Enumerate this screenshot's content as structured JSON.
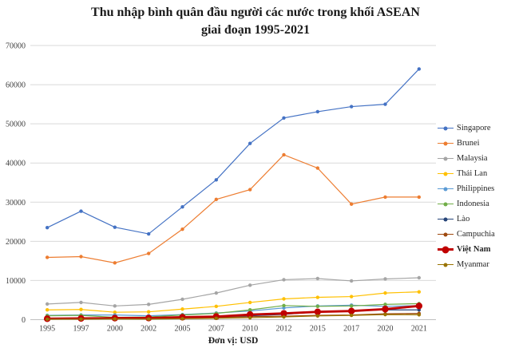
{
  "header": {
    "line1": "Thu nhập bình quân đầu người các nước trong khối ASEAN",
    "line2": "giai đoạn 1995-2021"
  },
  "chart_data": {
    "type": "line",
    "title": "Thu nhập bình quân đầu người các nước trong khối ASEAN giai đoạn 1995-2021",
    "xlabel": "Đơn vị: USD",
    "ylabel": "",
    "ylim": [
      0,
      70000
    ],
    "y_ticks": [
      0,
      10000,
      20000,
      30000,
      40000,
      50000,
      60000,
      70000
    ],
    "grid": "horizontal",
    "legend_position": "right",
    "categories": [
      "1995",
      "1997",
      "2000",
      "2002",
      "2005",
      "2007",
      "2010",
      "2012",
      "2015",
      "2017",
      "2020",
      "2021"
    ],
    "series": [
      {
        "name": "Singapore",
        "color": "#4472C4",
        "bold": false,
        "values": [
          23500,
          27700,
          23600,
          21900,
          28800,
          35700,
          45000,
          51500,
          53100,
          54400,
          55000,
          64000
        ]
      },
      {
        "name": "Brunei",
        "color": "#ED7D31",
        "bold": false,
        "values": [
          15900,
          16100,
          14500,
          16900,
          23100,
          30700,
          33200,
          42100,
          38700,
          29500,
          31300,
          31300
        ]
      },
      {
        "name": "Malaysia",
        "color": "#A5A5A5",
        "bold": false,
        "values": [
          4000,
          4400,
          3500,
          3900,
          5200,
          6800,
          8800,
          10200,
          10500,
          9900,
          10400,
          10700
        ]
      },
      {
        "name": "Thái Lan",
        "color": "#FFC000",
        "bold": false,
        "values": [
          2500,
          2600,
          1900,
          2000,
          2700,
          3400,
          4400,
          5300,
          5700,
          5900,
          6800,
          7100
        ]
      },
      {
        "name": "Philippines",
        "color": "#5B9BD5",
        "bold": false,
        "values": [
          1100,
          1200,
          1200,
          1000,
          1300,
          1700,
          2200,
          3000,
          3500,
          3700,
          3400,
          3600
        ]
      },
      {
        "name": "Indonesia",
        "color": "#70AD47",
        "bold": false,
        "values": [
          1000,
          1100,
          600,
          700,
          1200,
          1600,
          2500,
          3600,
          3400,
          3500,
          3900,
          4100
        ]
      },
      {
        "name": "Lào",
        "color": "#264478",
        "bold": false,
        "values": [
          350,
          340,
          280,
          310,
          440,
          610,
          1000,
          1350,
          2000,
          2300,
          2500,
          2500
        ]
      },
      {
        "name": "Campuchia",
        "color": "#9E480E",
        "bold": false,
        "values": [
          280,
          300,
          300,
          330,
          450,
          550,
          780,
          890,
          1100,
          1200,
          1500,
          1600
        ]
      },
      {
        "name": "Việt Nam",
        "color": "#C00000",
        "bold": true,
        "values": [
          250,
          320,
          390,
          430,
          620,
          790,
          1300,
          1600,
          2000,
          2200,
          2700,
          3500
        ]
      },
      {
        "name": "Myanmar",
        "color": "#997300",
        "bold": false,
        "values": [
          120,
          140,
          180,
          160,
          250,
          350,
          500,
          700,
          960,
          1100,
          1300,
          1250
        ]
      }
    ]
  },
  "axis_colors": {
    "gridline": "#d9d9d9",
    "axis_line": "#bfbfbf",
    "tick_label": "#404040"
  }
}
